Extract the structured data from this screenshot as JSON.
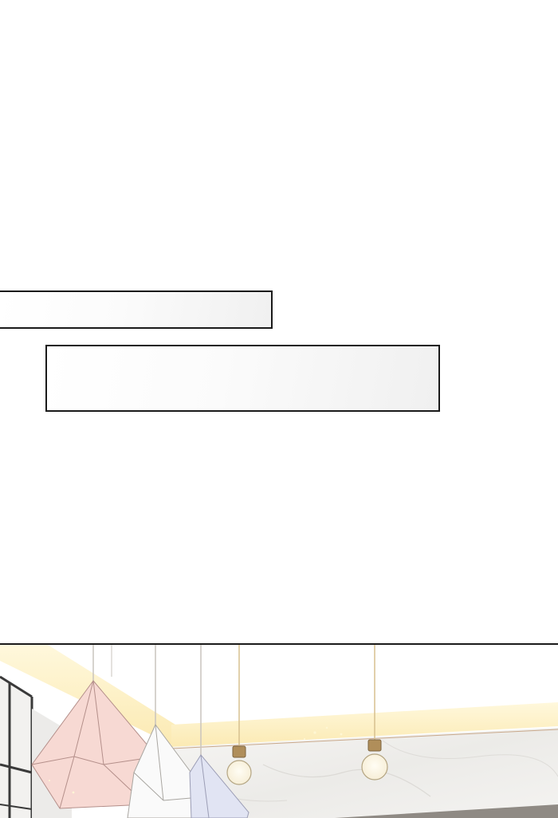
{
  "caption_boxes": [
    {
      "text": ""
    },
    {
      "text": ""
    }
  ],
  "scene": {
    "lamps": [
      "pink-pendant-lamp",
      "white-pendant-lamp",
      "lavender-pendant-lamp",
      "bulb-pendant-lamp",
      "bulb-pendant-lamp"
    ],
    "colors": {
      "ceiling_beam": "#fdf1c8",
      "pink_lamp": "#f7d9d3",
      "white_lamp": "#fafafa",
      "lavender_lamp": "#e1e4f3",
      "bulb_socket": "#b08e5a",
      "marble_wall": "#f1f0ee",
      "window_frame": "#3a3a3a"
    }
  }
}
